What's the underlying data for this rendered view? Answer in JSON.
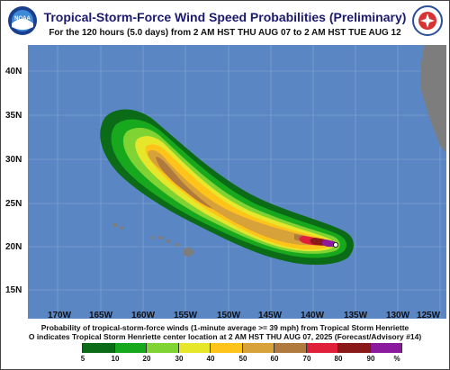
{
  "title": "Tropical-Storm-Force Wind Speed Probabilities (Preliminary)",
  "subtitle": "For the 120 hours (5.0 days) from 2 AM HST THU AUG 07 to 2 AM HST TUE AUG 12",
  "logos": {
    "left": "noaa-logo",
    "right": "national-weather-service-logo"
  },
  "latitude_labels": [
    "40N",
    "35N",
    "30N",
    "25N",
    "20N",
    "15N"
  ],
  "longitude_labels": [
    "170W",
    "165W",
    "160W",
    "155W",
    "150W",
    "145W",
    "140W",
    "135W",
    "130W",
    "125W"
  ],
  "footer": {
    "line1": "Probability of tropical-storm-force winds (1-minute average >= 39 mph) from Tropical Storm Henriette",
    "line2": "O indicates Tropical Storm Henriette center location at 2 AM HST THU AUG 07, 2025 (Forecast/Advisory #14)"
  },
  "legend": {
    "labels": [
      "5",
      "10",
      "20",
      "30",
      "40",
      "50",
      "60",
      "70",
      "80",
      "90",
      "%"
    ],
    "colors": [
      "#ffffff",
      "#0b6b16",
      "#18a81e",
      "#7fd332",
      "#e6e62a",
      "#ffc41a",
      "#d8a23a",
      "#b07a3e",
      "#e0203a",
      "#8a1a1a",
      "#8b1a9e"
    ]
  },
  "colors": {
    "ocean": "#5b86c4",
    "land": "#7d7d7d",
    "grid": "#8aa9d6",
    "title": "#1a1a6e"
  }
}
